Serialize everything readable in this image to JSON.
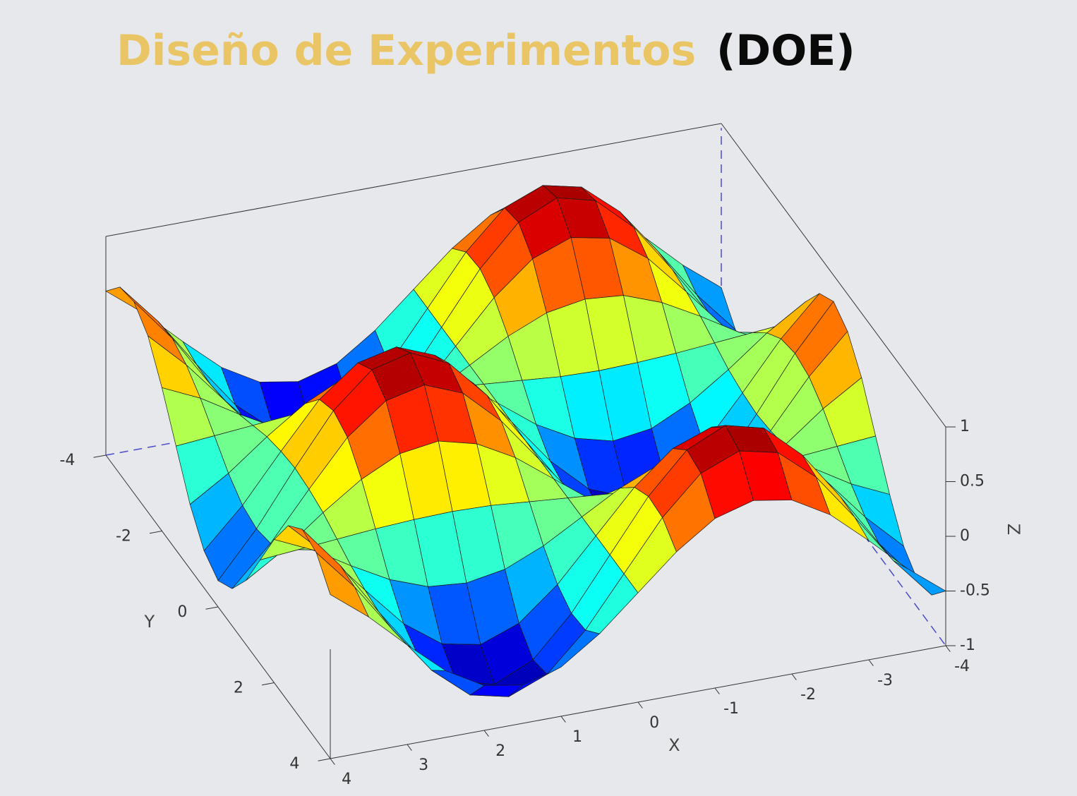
{
  "chart_data": {
    "type": "surface",
    "title": [
      "Diseño de Experimentos",
      "(DOE)"
    ],
    "title_colors": [
      "#e9c566",
      "#0a0a0a"
    ],
    "x_label": "X",
    "y_label": "Y",
    "z_label": "Z",
    "colormap": "jet",
    "x": [
      -4,
      -3.5,
      -3,
      -2.5,
      -2,
      -1.5,
      -1,
      -0.5,
      0,
      0.5,
      1,
      1.5,
      2,
      2.5,
      3,
      3.5,
      4
    ],
    "y": [
      -4,
      -3.5,
      -3,
      -2.5,
      -2,
      -1.5,
      -1,
      -0.5,
      0,
      0.5,
      1,
      1.5,
      2,
      2.5,
      3,
      3.5,
      4
    ],
    "z": [
      [
        -0.5,
        -0.23,
        0.09,
        0.39,
        0.59,
        0.65,
        0.55,
        0.31,
        0,
        -0.31,
        -0.55,
        -0.65,
        -0.59,
        -0.39,
        -0.09,
        0.23,
        0.5
      ],
      [
        -0.71,
        -0.33,
        0.13,
        0.56,
        0.85,
        0.93,
        0.79,
        0.45,
        0,
        -0.45,
        -0.79,
        -0.93,
        -0.85,
        -0.56,
        -0.13,
        0.33,
        0.71
      ],
      [
        -0.75,
        -0.35,
        0.14,
        0.59,
        0.9,
        0.99,
        0.83,
        0.47,
        0,
        -0.47,
        -0.83,
        -0.99,
        -0.9,
        -0.59,
        -0.14,
        0.35,
        0.75
      ],
      [
        -0.61,
        -0.28,
        0.11,
        0.48,
        0.73,
        0.8,
        0.67,
        0.38,
        0,
        -0.38,
        -0.67,
        -0.8,
        -0.73,
        -0.48,
        -0.11,
        0.28,
        0.61
      ],
      [
        -0.31,
        -0.15,
        0.06,
        0.25,
        0.38,
        0.41,
        0.35,
        0.2,
        0,
        -0.2,
        -0.35,
        -0.41,
        -0.38,
        -0.25,
        -0.06,
        0.15,
        0.31
      ],
      [
        0.05,
        0.02,
        -0.01,
        -0.04,
        -0.06,
        -0.07,
        -0.06,
        -0.03,
        0,
        0.03,
        0.06,
        0.07,
        0.06,
        0.04,
        0.01,
        -0.02,
        -0.05
      ],
      [
        0.41,
        0.19,
        -0.08,
        -0.32,
        -0.49,
        -0.54,
        -0.45,
        -0.26,
        0,
        0.26,
        0.45,
        0.54,
        0.49,
        0.32,
        0.08,
        -0.19,
        -0.41
      ],
      [
        0.66,
        0.31,
        -0.12,
        -0.53,
        -0.8,
        -0.88,
        -0.74,
        -0.42,
        0,
        0.42,
        0.74,
        0.88,
        0.8,
        0.53,
        0.12,
        -0.31,
        -0.66
      ],
      [
        0.76,
        0.35,
        -0.14,
        -0.6,
        -0.91,
        -1,
        -0.84,
        -0.48,
        0,
        0.48,
        0.84,
        1,
        0.91,
        0.6,
        0.14,
        -0.35,
        -0.76
      ],
      [
        0.66,
        0.31,
        -0.12,
        -0.53,
        -0.8,
        -0.88,
        -0.74,
        -0.42,
        0,
        0.42,
        0.74,
        0.88,
        0.8,
        0.53,
        0.12,
        -0.31,
        -0.66
      ],
      [
        0.41,
        0.19,
        -0.08,
        -0.32,
        -0.49,
        -0.54,
        -0.45,
        -0.26,
        0,
        0.26,
        0.45,
        0.54,
        0.49,
        0.32,
        0.08,
        -0.19,
        -0.41
      ],
      [
        0.05,
        0.02,
        -0.01,
        -0.04,
        -0.06,
        -0.07,
        -0.06,
        -0.03,
        0,
        0.03,
        0.06,
        0.07,
        0.06,
        0.04,
        0.01,
        -0.02,
        -0.05
      ],
      [
        -0.31,
        -0.15,
        0.06,
        0.25,
        0.38,
        0.41,
        0.35,
        0.2,
        0,
        -0.2,
        -0.35,
        -0.41,
        -0.38,
        -0.25,
        -0.06,
        0.15,
        0.31
      ],
      [
        -0.61,
        -0.28,
        0.11,
        0.48,
        0.73,
        0.8,
        0.67,
        0.38,
        0,
        -0.38,
        -0.67,
        -0.8,
        -0.73,
        -0.48,
        -0.11,
        0.28,
        0.61
      ],
      [
        -0.75,
        -0.35,
        0.14,
        0.59,
        0.9,
        0.99,
        0.83,
        0.47,
        0,
        -0.47,
        -0.83,
        -0.99,
        -0.9,
        -0.59,
        -0.14,
        0.35,
        0.75
      ],
      [
        -0.71,
        -0.33,
        0.13,
        0.56,
        0.85,
        0.93,
        0.79,
        0.45,
        0,
        -0.45,
        -0.79,
        -0.93,
        -0.85,
        -0.56,
        -0.13,
        0.33,
        0.71
      ],
      [
        -0.5,
        -0.23,
        0.09,
        0.39,
        0.59,
        0.65,
        0.55,
        0.31,
        0,
        -0.31,
        -0.55,
        -0.65,
        -0.59,
        -0.39,
        -0.09,
        0.23,
        0.5
      ]
    ],
    "xlim": [
      -4,
      4
    ],
    "ylim": [
      -4,
      4
    ],
    "zlim": [
      -1,
      1
    ],
    "xticks": [
      -4,
      -3,
      -2,
      -1,
      0,
      1,
      2,
      3,
      4
    ],
    "yticks": [
      -4,
      -2,
      0,
      2,
      4
    ],
    "zticks": [
      -1,
      -0.5,
      0,
      0.5,
      1
    ]
  }
}
